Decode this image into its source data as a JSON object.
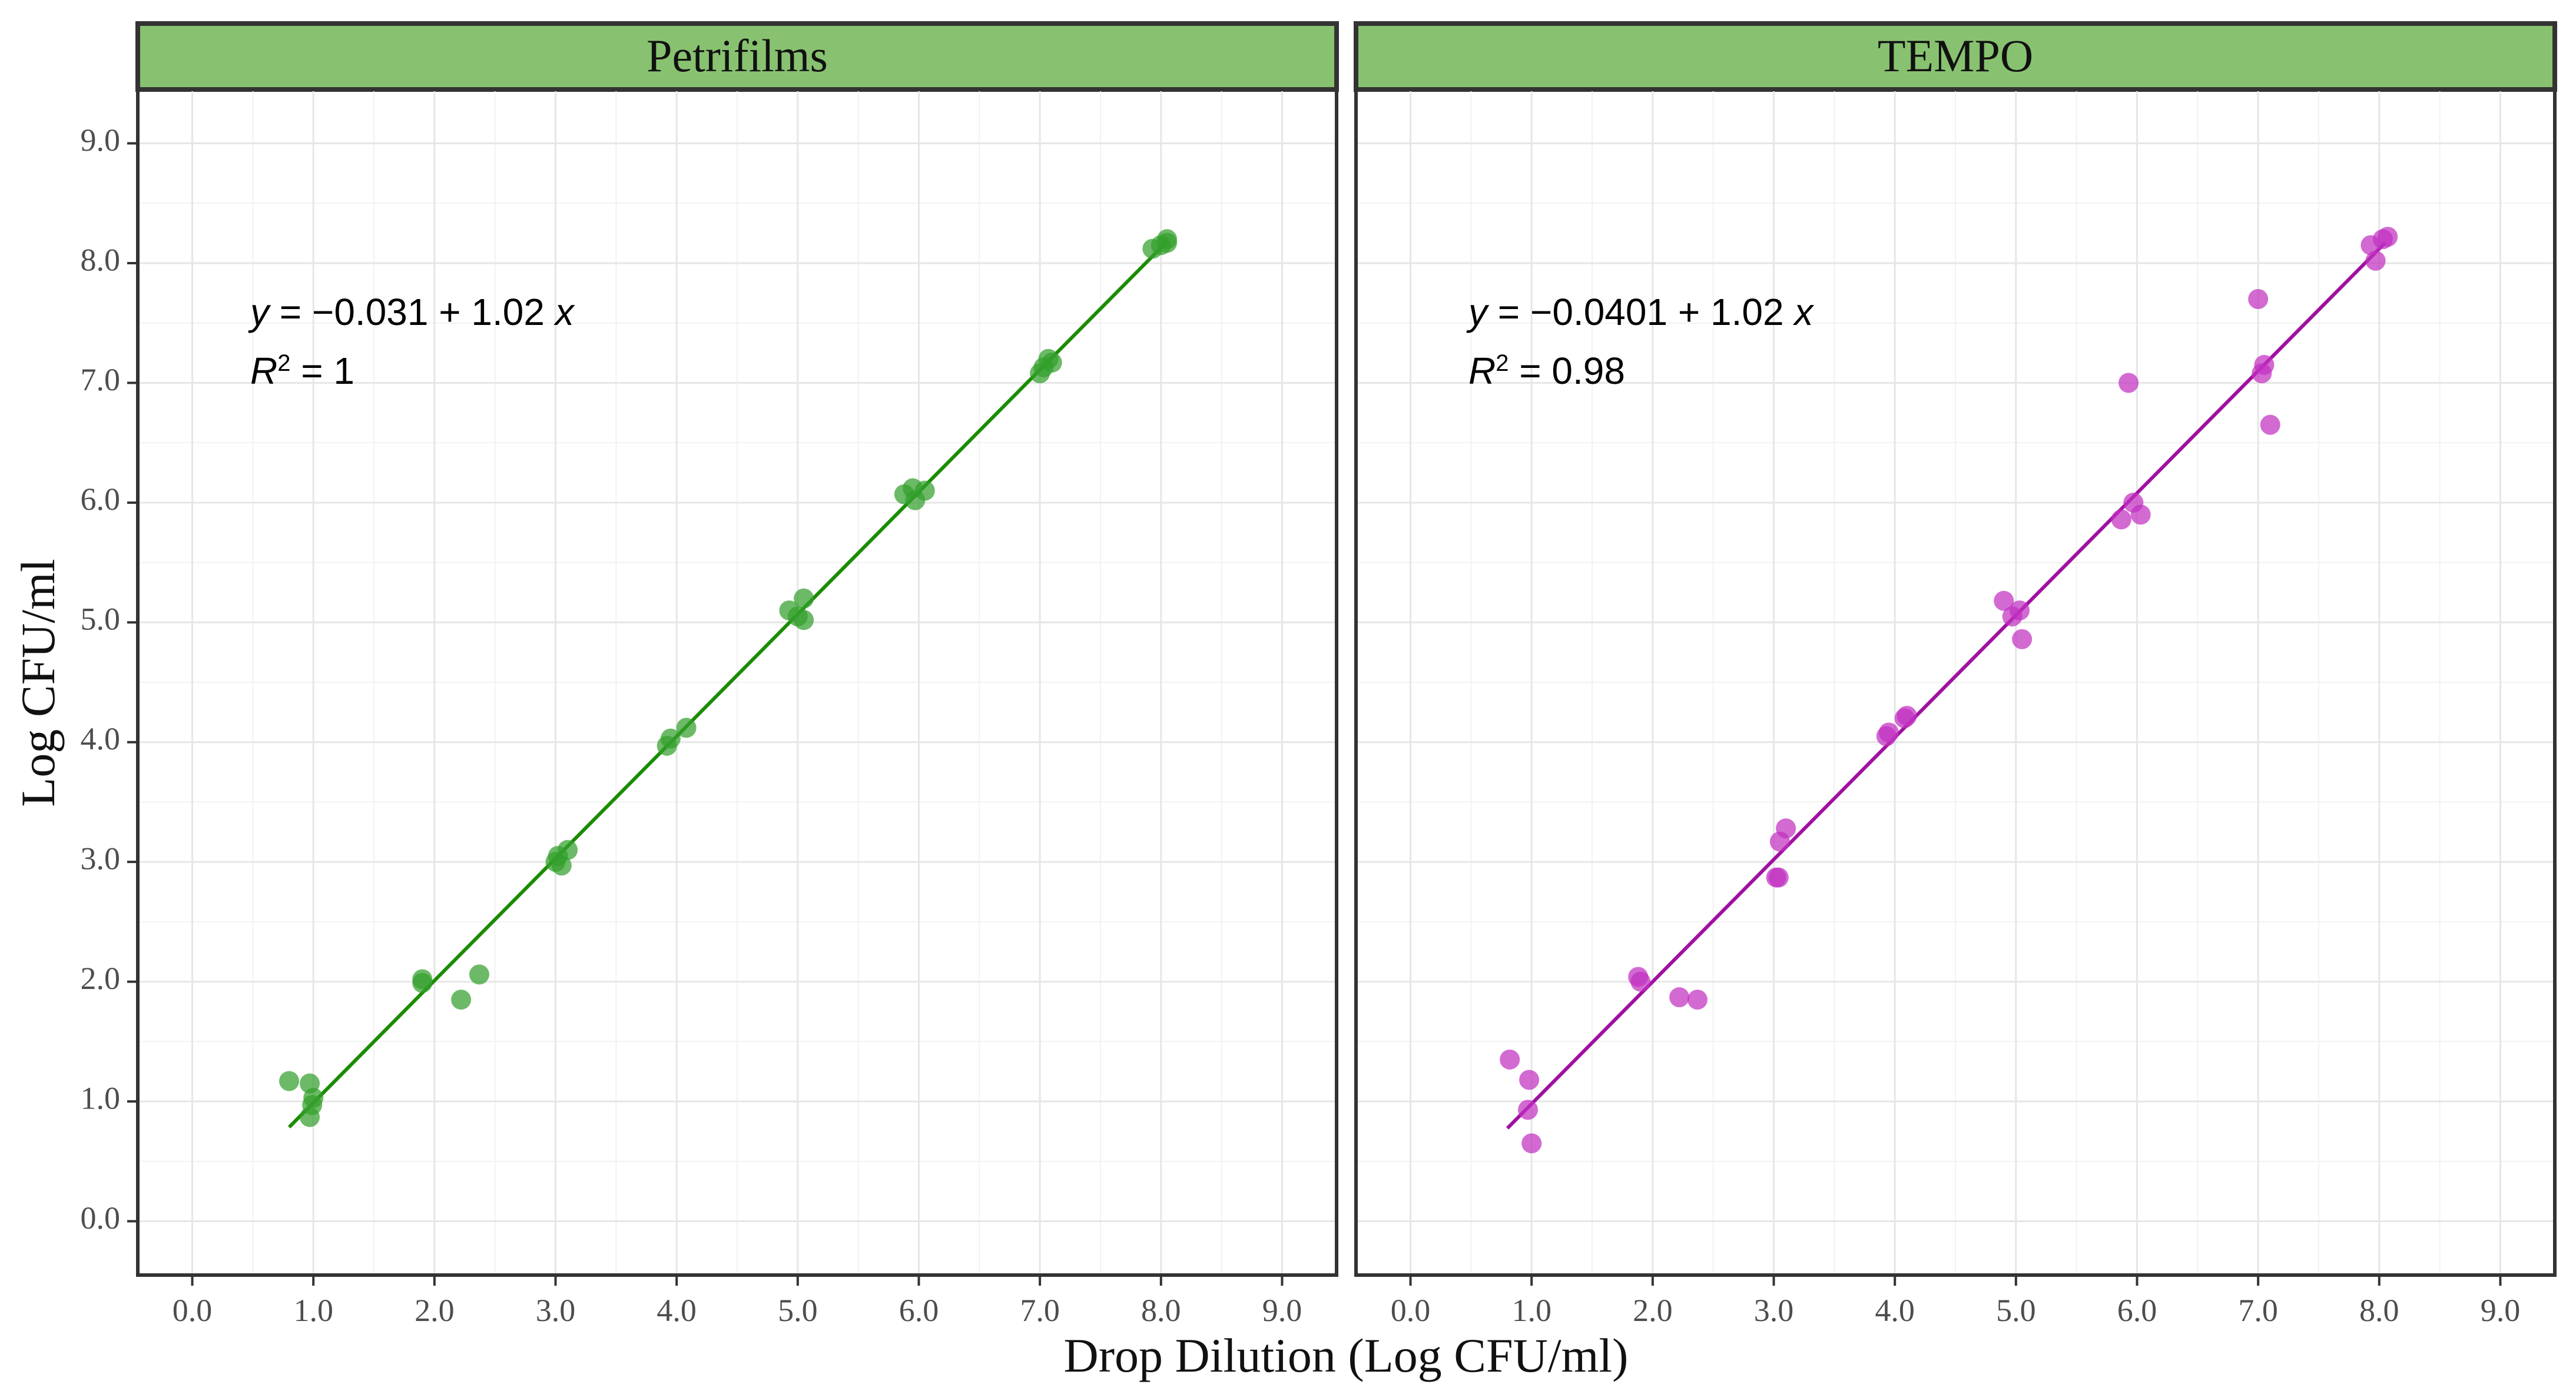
{
  "chart_data": {
    "type": "scatter",
    "xlabel": "Drop Dilution (Log CFU/ml)",
    "ylabel": "Log CFU/ml",
    "xlim": [
      -0.45,
      9.45
    ],
    "ylim": [
      -0.45,
      9.45
    ],
    "x_ticks": [
      0,
      1,
      2,
      3,
      4,
      5,
      6,
      7,
      8,
      9
    ],
    "y_ticks": [
      0,
      1,
      2,
      3,
      4,
      5,
      6,
      7,
      8,
      9
    ],
    "x_tick_labels": [
      "0.0",
      "1.0",
      "2.0",
      "3.0",
      "4.0",
      "5.0",
      "6.0",
      "7.0",
      "8.0",
      "9.0"
    ],
    "y_tick_labels": [
      "0.0",
      "1.0",
      "2.0",
      "3.0",
      "4.0",
      "5.0",
      "6.0",
      "7.0",
      "8.0",
      "9.0"
    ],
    "grid": true,
    "panels": [
      {
        "title": "Petrifilms",
        "color": "#1a8c00",
        "point_color": "#33a02c",
        "fit": {
          "intercept": -0.031,
          "slope": 1.02,
          "x_range": [
            0.8,
            8.05
          ]
        },
        "equation": {
          "y_var": "y",
          "equals_intercept": " = −0.031 ",
          "plus_slope": "+ 1.02 ",
          "x_var": "x",
          "r_var": "R",
          "r_sup": "2",
          "r_value": " = 1"
        },
        "points": [
          [
            0.8,
            1.17
          ],
          [
            0.97,
            1.15
          ],
          [
            0.97,
            0.87
          ],
          [
            0.99,
            0.97
          ],
          [
            1.0,
            1.03
          ],
          [
            1.9,
            1.99
          ],
          [
            1.9,
            2.02
          ],
          [
            2.22,
            1.85
          ],
          [
            2.37,
            2.06
          ],
          [
            3.0,
            3.0
          ],
          [
            3.02,
            3.05
          ],
          [
            3.05,
            2.97
          ],
          [
            3.1,
            3.1
          ],
          [
            3.92,
            3.97
          ],
          [
            3.95,
            4.03
          ],
          [
            4.08,
            4.12
          ],
          [
            4.93,
            5.1
          ],
          [
            5.0,
            5.05
          ],
          [
            5.05,
            5.02
          ],
          [
            5.05,
            5.2
          ],
          [
            5.88,
            6.07
          ],
          [
            5.95,
            6.12
          ],
          [
            5.97,
            6.02
          ],
          [
            6.05,
            6.1
          ],
          [
            7.0,
            7.08
          ],
          [
            7.03,
            7.13
          ],
          [
            7.07,
            7.2
          ],
          [
            7.1,
            7.17
          ],
          [
            7.93,
            8.12
          ],
          [
            8.0,
            8.15
          ],
          [
            8.05,
            8.2
          ],
          [
            8.05,
            8.17
          ]
        ]
      },
      {
        "title": "TEMPO",
        "color": "#a010a0",
        "point_color": "#c030c0",
        "fit": {
          "intercept": -0.0401,
          "slope": 1.02,
          "x_range": [
            0.8,
            8.05
          ]
        },
        "equation": {
          "y_var": "y",
          "equals_intercept": " = −0.0401 ",
          "plus_slope": "+ 1.02 ",
          "x_var": "x",
          "r_var": "R",
          "r_sup": "2",
          "r_value": " = 0.98"
        },
        "points": [
          [
            0.82,
            1.35
          ],
          [
            0.97,
            0.93
          ],
          [
            0.98,
            1.18
          ],
          [
            1.0,
            0.65
          ],
          [
            1.88,
            2.04
          ],
          [
            1.9,
            2.0
          ],
          [
            2.22,
            1.87
          ],
          [
            2.37,
            1.85
          ],
          [
            3.02,
            2.87
          ],
          [
            3.04,
            2.87
          ],
          [
            3.05,
            3.17
          ],
          [
            3.1,
            3.28
          ],
          [
            3.93,
            4.05
          ],
          [
            3.95,
            4.08
          ],
          [
            4.08,
            4.2
          ],
          [
            4.1,
            4.22
          ],
          [
            4.9,
            5.18
          ],
          [
            4.97,
            5.05
          ],
          [
            5.03,
            5.1
          ],
          [
            5.05,
            4.86
          ],
          [
            5.87,
            5.86
          ],
          [
            5.93,
            7.0
          ],
          [
            5.97,
            6.0
          ],
          [
            6.03,
            5.9
          ],
          [
            7.0,
            7.7
          ],
          [
            7.03,
            7.08
          ],
          [
            7.05,
            7.15
          ],
          [
            7.1,
            6.65
          ],
          [
            7.93,
            8.15
          ],
          [
            7.97,
            8.02
          ],
          [
            8.03,
            8.2
          ],
          [
            8.07,
            8.22
          ]
        ]
      }
    ]
  }
}
